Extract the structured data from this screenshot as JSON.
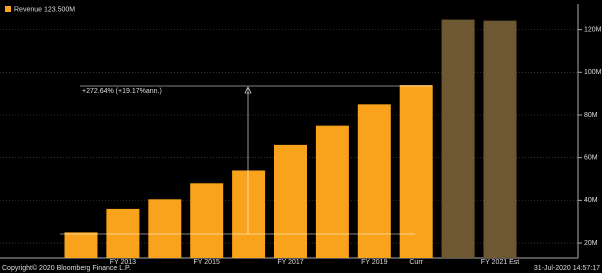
{
  "chart_data": {
    "type": "bar",
    "legend_label": "Revenue 123.500M",
    "categories": [
      null,
      "FY 2013",
      null,
      "FY 2015",
      null,
      "FY 2017",
      null,
      "FY 2019",
      "Curr",
      null,
      "FY 2021 Est"
    ],
    "values": [
      25,
      36,
      40.5,
      48,
      54,
      66,
      75,
      85,
      94,
      124.7,
      124.2
    ],
    "colors": [
      "#f9a21b",
      "#f9a21b",
      "#f9a21b",
      "#f9a21b",
      "#f9a21b",
      "#f9a21b",
      "#f9a21b",
      "#f9a21b",
      "#f9a21b",
      "#6e5733",
      "#6e5733"
    ],
    "annotation": "+272.64% (+19.17%ann.)",
    "ylim": [
      13,
      132
    ],
    "yticks": [
      {
        "value": 20,
        "label": "20M"
      },
      {
        "value": 40,
        "label": "40M"
      },
      {
        "value": 60,
        "label": "60M"
      },
      {
        "value": 80,
        "label": "80M"
      },
      {
        "value": 100,
        "label": "100M"
      },
      {
        "value": 120,
        "label": "120M"
      }
    ],
    "grid": true,
    "copyright": "Copyright© 2020 Bloomberg Finance L.P.",
    "timestamp": "31-Jul-2020 14:57:17"
  }
}
